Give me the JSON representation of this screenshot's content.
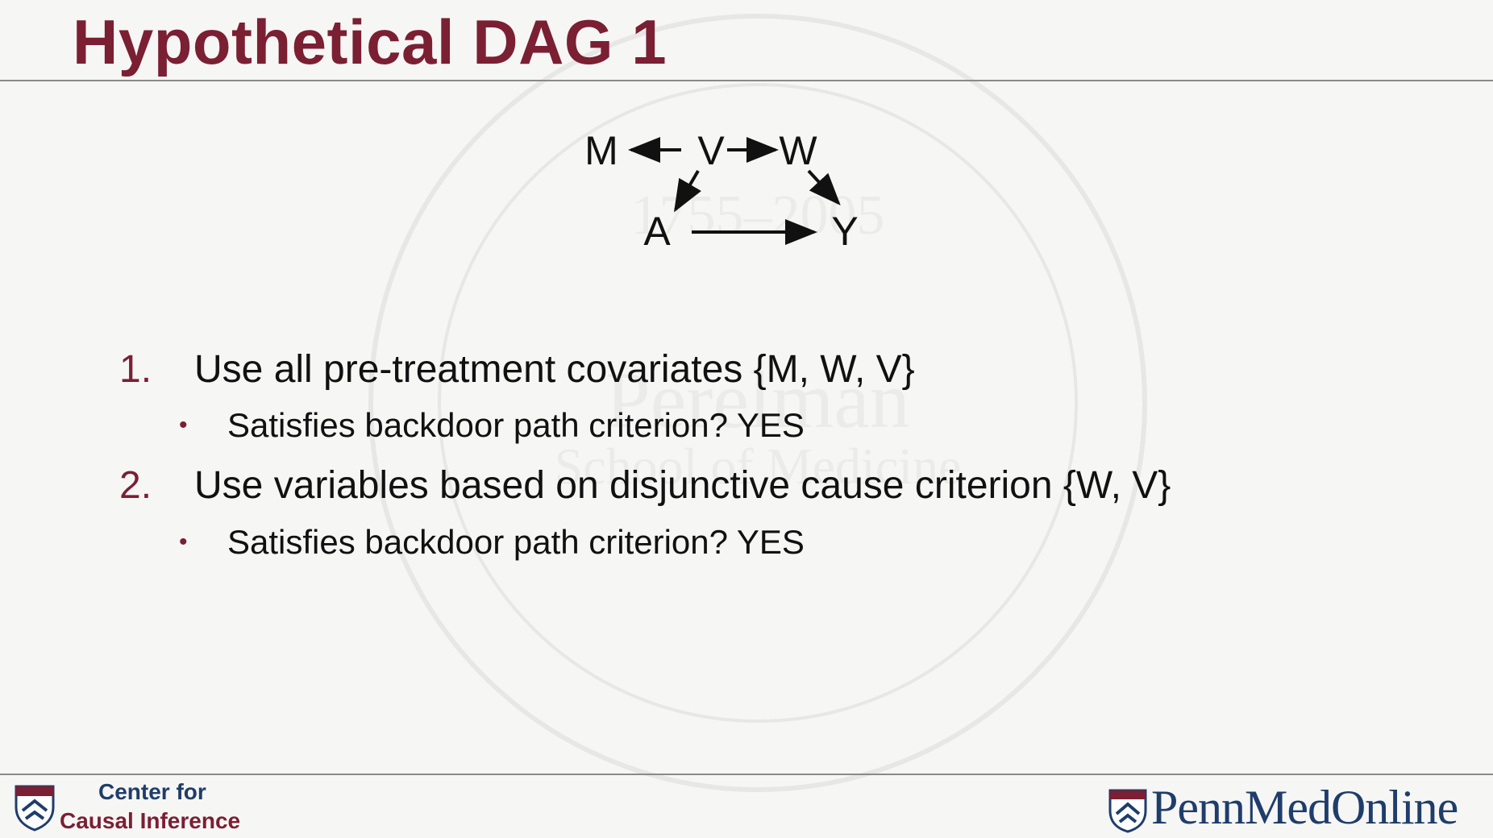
{
  "slide": {
    "title": "Hypothetical DAG 1"
  },
  "dag": {
    "nodes": [
      "M",
      "V",
      "W",
      "A",
      "Y"
    ],
    "edges": [
      {
        "from": "V",
        "to": "M"
      },
      {
        "from": "V",
        "to": "W"
      },
      {
        "from": "V",
        "to": "A"
      },
      {
        "from": "W",
        "to": "Y"
      },
      {
        "from": "A",
        "to": "Y"
      }
    ]
  },
  "items": [
    {
      "number": "1.",
      "text": "Use all pre-treatment covariates {M, W, V}",
      "sub": {
        "bullet": "•",
        "text": "Satisfies backdoor path criterion? YES"
      }
    },
    {
      "number": "2.",
      "text": "Use variables based on disjunctive cause criterion {W, V}",
      "sub": {
        "bullet": "•",
        "text": "Satisfies backdoor path criterion? YES"
      }
    }
  ],
  "footer": {
    "center_line1": "Center for",
    "center_line2": "Causal Inference",
    "brand": "PennMedOnline"
  },
  "colors": {
    "accent": "#7b1f33",
    "navy": "#1f3d6b",
    "text": "#111111",
    "rule": "#8a8a8a"
  }
}
